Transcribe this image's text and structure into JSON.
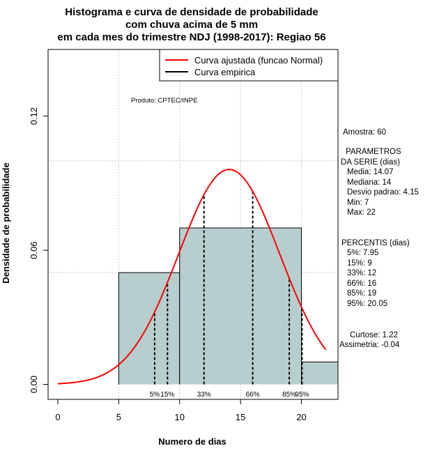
{
  "chart_data": {
    "type": "bar",
    "title_lines": [
      "Histograma e curva de densidade de probabilidade",
      "com chuva acima de 5 mm",
      "em cada mes do trimestre NDJ (1998-2017): Regiao 56"
    ],
    "xlabel": "Numero de dias",
    "ylabel": "Densidade de probabilidade",
    "xlim": [
      -0.8,
      23
    ],
    "ylim": [
      -0.0067,
      0.1498
    ],
    "x_ticks": [
      0,
      5,
      10,
      15,
      20
    ],
    "y_ticks": [
      0.0,
      0.06,
      0.12
    ],
    "y_tick_labels": [
      "0.00",
      "0.06",
      "0.12"
    ],
    "grid_x": [
      5,
      10,
      15,
      20
    ],
    "grid_y": [
      0.05,
      0.1
    ],
    "histogram": {
      "bins": [
        {
          "start": 5,
          "end": 10,
          "density": 0.05
        },
        {
          "start": 10,
          "end": 20,
          "density": 0.07
        },
        {
          "start": 20,
          "end": 25,
          "density": 0.01
        }
      ],
      "fill": "#b7cece"
    },
    "normal_curve": {
      "mean": 14.07,
      "sd": 4.15,
      "x_from": 0,
      "x_to": 22,
      "color": "#ff0000"
    },
    "percentile_lines": [
      {
        "label": "5%",
        "value": 7.95
      },
      {
        "label": "15%",
        "value": 9
      },
      {
        "label": "33%",
        "value": 12
      },
      {
        "label": "66%",
        "value": 16
      },
      {
        "label": "85%",
        "value": 19
      },
      {
        "label": "95%",
        "value": 20.05
      }
    ],
    "legend": [
      {
        "label": "Curva ajustada (funcao Normal)",
        "color": "#ff0000"
      },
      {
        "label": "Curva empirica",
        "color": "#000000"
      }
    ],
    "legend_position": "top-right",
    "product_label": "Produto: CPTEC/INPE"
  },
  "side_panel": {
    "amostra": "Amostra: 60",
    "params_title_1": "PARAMETROS",
    "params_title_2": "DA SERIE (dias)",
    "media": "Media: 14.07",
    "mediana": "Mediana: 14",
    "desvio": "Desvio padrao: 4.15",
    "min": "Min: 7",
    "max": "Max: 22",
    "percentis_title": "PERCENTIS (dias)",
    "p5": "5%: 7.95",
    "p15": "15%: 9",
    "p33": "33%: 12",
    "p66": "66%: 16",
    "p85": "85%: 19",
    "p95": "95%: 20.05",
    "curtose": "Curtose: 1.22",
    "assimetria": "Assimetria: -0.04"
  }
}
